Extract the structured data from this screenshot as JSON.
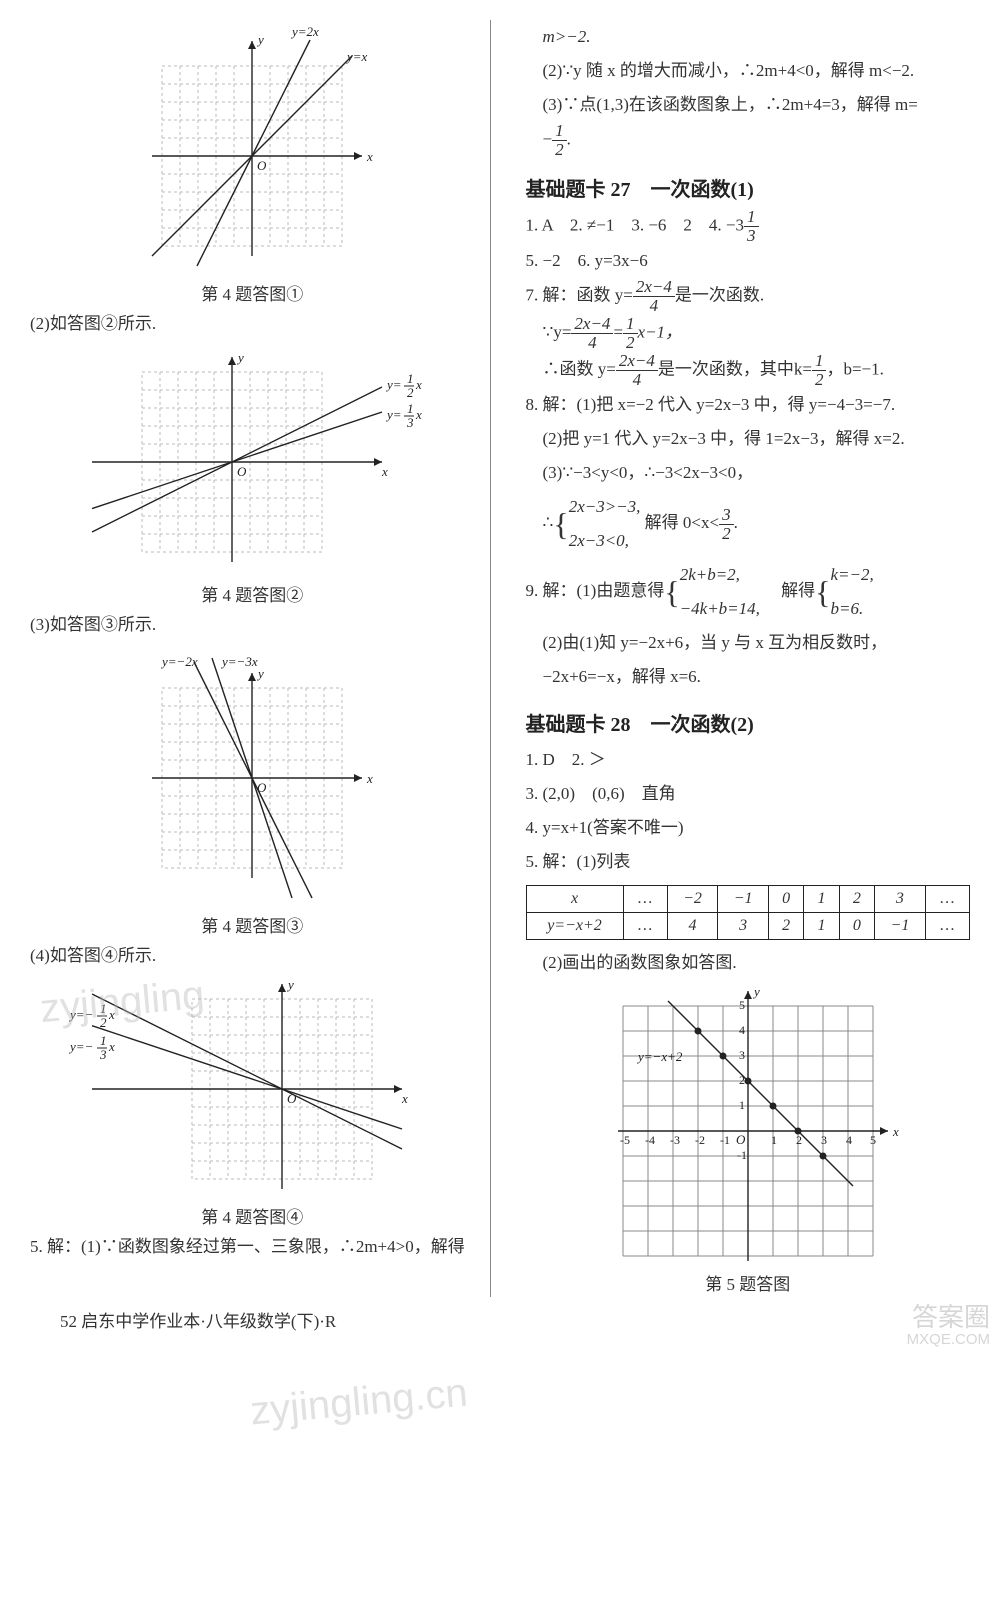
{
  "left": {
    "fig1": {
      "caption": "第 4 题答图①",
      "lines": [
        {
          "label": "y=2x",
          "slope": 2
        },
        {
          "label": "y=x",
          "slope": 1
        }
      ],
      "xlim": [
        -5,
        5
      ],
      "ylim": [
        -5,
        5
      ],
      "grid_color": "#bbbbbb",
      "grid_dash": "3 3",
      "axis_color": "#222222"
    },
    "text2": "(2)如答图②所示.",
    "fig2": {
      "caption": "第 4 题答图②",
      "lines": [
        {
          "label": "y=½x",
          "slope": 0.5
        },
        {
          "label": "y=⅓x",
          "slope": 0.333
        }
      ],
      "label1_frac_n": "1",
      "label1_frac_d": "2",
      "label2_frac_n": "1",
      "label2_frac_d": "3"
    },
    "text3": "(3)如答图③所示.",
    "fig3": {
      "caption": "第 4 题答图③",
      "lines": [
        {
          "label": "y=−2x",
          "slope": -2
        },
        {
          "label": "y=−3x",
          "slope": -3
        }
      ]
    },
    "text4": "(4)如答图④所示.",
    "fig4": {
      "caption": "第 4 题答图④",
      "lines": [
        {
          "label": "y=−½x",
          "slope": -0.5
        },
        {
          "label": "y=−⅓x",
          "slope": -0.333
        }
      ],
      "label1_frac_n": "1",
      "label1_frac_d": "2",
      "label2_frac_n": "1",
      "label2_frac_d": "3"
    },
    "text5": "5. 解：(1)∵函数图象经过第一、三象限，∴2m+4>0，解得"
  },
  "right": {
    "l1": "m>−2.",
    "l2": "(2)∵y 随 x 的增大而减小，∴2m+4<0，解得 m<−2.",
    "l3": "(3)∵点(1,3)在该函数图象上，∴2m+4=3，解得 m=",
    "l3b_frac_n": "1",
    "l3b_frac_d": "2",
    "sec27": "基础题卡 27　一次函数(1)",
    "s27_l1a": "1. A　2. ≠−1　3. −6　2　4. −3",
    "s27_l1_frac_n": "1",
    "s27_l1_frac_d": "3",
    "s27_l2": "5. −2　6. y=3x−6",
    "s27_l3a": "7. 解：函数 y=",
    "s27_l3_frac_n": "2x−4",
    "s27_l3_frac_d": "4",
    "s27_l3b": "是一次函数.",
    "s27_l4a": "∵y=",
    "s27_l4_frac1_n": "2x−4",
    "s27_l4_frac1_d": "4",
    "s27_l4b": "=",
    "s27_l4_frac2_n": "1",
    "s27_l4_frac2_d": "2",
    "s27_l4c": "x−1，",
    "s27_l5a": "∴函数 y=",
    "s27_l5_frac_n": "2x−4",
    "s27_l5_frac_d": "4",
    "s27_l5b": "是一次函数，其中k=",
    "s27_l5_frac2_n": "1",
    "s27_l5_frac2_d": "2",
    "s27_l5c": "，b=−1.",
    "s27_l6": "8. 解：(1)把 x=−2 代入 y=2x−3 中，得 y=−4−3=−7.",
    "s27_l7": "(2)把 y=1 代入 y=2x−3 中，得 1=2x−3，解得 x=2.",
    "s27_l8": "(3)∵−3<y<0，∴−3<2x−3<0，",
    "s27_l9a": "∴",
    "s27_l9_b1": "2x−3>−3,",
    "s27_l9_b2": "2x−3<0,",
    "s27_l9b": "解得 0<x<",
    "s27_l9_frac_n": "3",
    "s27_l9_frac_d": "2",
    "s27_l9c": ".",
    "s27_l10a": "9. 解：(1)由题意得",
    "s27_l10_b1": "2k+b=2,",
    "s27_l10_b2": "−4k+b=14,",
    "s27_l10b": "解得",
    "s27_l10_c1": "k=−2,",
    "s27_l10_c2": "b=6.",
    "s27_l11": "(2)由(1)知 y=−2x+6，当 y 与 x 互为相反数时，",
    "s27_l12": "−2x+6=−x，解得 x=6.",
    "sec28": "基础题卡 28　一次函数(2)",
    "s28_l1": "1. D　2. ＞",
    "s28_l2": "3. (2,0)　(0,6)　直角",
    "s28_l3": "4. y=x+1(答案不唯一)",
    "s28_l4": "5. 解：(1)列表",
    "table": {
      "header": [
        "x",
        "…",
        "−2",
        "−1",
        "0",
        "1",
        "2",
        "3",
        "…"
      ],
      "row": [
        "y=−x+2",
        "…",
        "4",
        "3",
        "2",
        "1",
        "0",
        "−1",
        "…"
      ]
    },
    "s28_l5": "(2)画出的函数图象如答图.",
    "fig5": {
      "caption": "第 5 题答图",
      "line_label": "y=−x+2",
      "slope": -1,
      "intercept": 2,
      "xlim": [
        -5,
        5
      ],
      "ylim": [
        -5,
        5
      ],
      "xticks": [
        "-5",
        "-4",
        "-3",
        "-2",
        "-1",
        "O",
        "1",
        "2",
        "3",
        "4",
        "5"
      ],
      "yticks": [
        "-1",
        "1",
        "2",
        "3",
        "4",
        "5"
      ],
      "points": [
        [
          -2,
          4
        ],
        [
          -1,
          3
        ],
        [
          0,
          2
        ],
        [
          1,
          1
        ],
        [
          2,
          0
        ],
        [
          3,
          -1
        ]
      ],
      "grid_color": "#888888"
    }
  },
  "footer": "52 启东中学作业本·八年级数学(下)·R",
  "wm1": "zyjingling",
  "wm2": "zyjingling.cn",
  "corner1": "答案圈",
  "corner2": "MXQE.COM"
}
